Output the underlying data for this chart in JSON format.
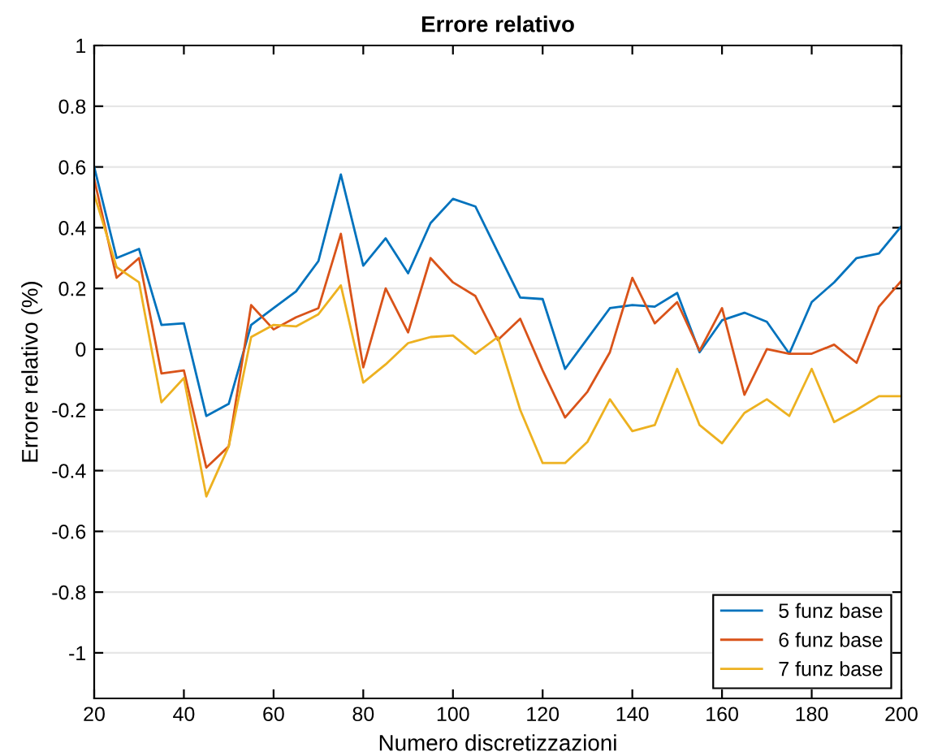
{
  "chart_data": {
    "type": "line",
    "title": "Errore relativo",
    "xlabel": "Numero discretizzazioni",
    "ylabel": "Errore relativo (%)",
    "x": [
      20,
      25,
      30,
      35,
      40,
      45,
      50,
      55,
      60,
      65,
      70,
      75,
      80,
      85,
      90,
      95,
      100,
      105,
      110,
      115,
      120,
      125,
      130,
      135,
      140,
      145,
      150,
      155,
      160,
      165,
      170,
      175,
      180,
      185,
      190,
      195,
      200
    ],
    "series": [
      {
        "name": "5 funz base",
        "color": "#0072bd",
        "values": [
          0.6,
          0.3,
          0.33,
          0.08,
          0.085,
          -0.22,
          -0.18,
          0.08,
          0.135,
          0.19,
          0.29,
          0.575,
          0.275,
          0.365,
          0.25,
          0.415,
          0.495,
          0.47,
          0.32,
          0.17,
          0.165,
          -0.065,
          0.035,
          0.135,
          0.145,
          0.14,
          0.185,
          -0.01,
          0.095,
          0.12,
          0.09,
          -0.015,
          0.155,
          0.22,
          0.3,
          0.315,
          0.405
        ]
      },
      {
        "name": "6 funz base",
        "color": "#d95319",
        "values": [
          0.56,
          0.235,
          0.3,
          -0.08,
          -0.07,
          -0.39,
          -0.32,
          0.145,
          0.065,
          0.105,
          0.135,
          0.38,
          -0.06,
          0.2,
          0.055,
          0.3,
          0.22,
          0.175,
          0.03,
          0.1,
          -0.07,
          -0.225,
          -0.14,
          -0.01,
          0.235,
          0.085,
          0.155,
          -0.005,
          0.135,
          -0.15,
          0.0,
          -0.015,
          -0.015,
          0.015,
          -0.045,
          0.14,
          0.225
        ]
      },
      {
        "name": "7 funz base",
        "color": "#edb120",
        "values": [
          0.51,
          0.27,
          0.22,
          -0.175,
          -0.095,
          -0.485,
          -0.32,
          0.04,
          0.08,
          0.075,
          0.115,
          0.21,
          -0.11,
          -0.05,
          0.02,
          0.04,
          0.045,
          -0.015,
          0.04,
          -0.2,
          -0.375,
          -0.375,
          -0.305,
          -0.165,
          -0.27,
          -0.25,
          -0.065,
          -0.25,
          -0.31,
          -0.21,
          -0.165,
          -0.22,
          -0.065,
          -0.24,
          -0.2,
          -0.155,
          -0.155
        ]
      }
    ],
    "xlim": [
      20,
      200
    ],
    "xticks": [
      20,
      40,
      60,
      80,
      100,
      120,
      140,
      160,
      180,
      200
    ],
    "ylim": [
      -1.15,
      1
    ],
    "yticks": [
      {
        "value": -1,
        "label": "-1"
      },
      {
        "value": -0.8,
        "label": "-0.8"
      },
      {
        "value": -0.6,
        "label": "-0.6"
      },
      {
        "value": -0.4,
        "label": "-0.4"
      },
      {
        "value": -0.2,
        "label": "-0.2"
      },
      {
        "value": 0,
        "label": "0"
      },
      {
        "value": 0.2,
        "label": "0.2"
      },
      {
        "value": 0.4,
        "label": "0.4"
      },
      {
        "value": 0.6,
        "label": "0.6"
      },
      {
        "value": 0.8,
        "label": "0.8"
      },
      {
        "value": 1,
        "label": "1"
      }
    ],
    "grid": "y",
    "legend": "bottom right",
    "marker": "none",
    "line_style": "solid"
  }
}
